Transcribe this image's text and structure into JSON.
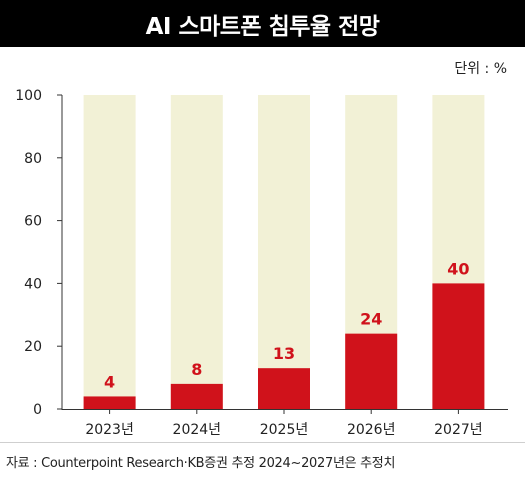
{
  "header": {
    "title": "AI 스마트폰 침투율 전망",
    "unit": "단위 : %"
  },
  "chart_data": {
    "type": "bar",
    "categories": [
      "2023년",
      "2024년",
      "2025년",
      "2026년",
      "2027년"
    ],
    "series": [
      {
        "values": [
          4,
          8,
          13,
          24,
          40
        ]
      }
    ],
    "data_labels": [
      "4",
      "8",
      "13",
      "24",
      "40"
    ],
    "ylim": [
      0,
      100
    ],
    "yticks": [
      "0",
      "20",
      "40",
      "60",
      "80",
      "100"
    ],
    "background_bar_value": 100,
    "colors": {
      "bar": "#d0121b",
      "background_bar": "#f2f1d6",
      "label": "#d0121b",
      "axis": "#333333"
    }
  },
  "footer": {
    "source": "자료 : Counterpoint Research·KB증권 추정 2024~2027년은 추정치"
  }
}
